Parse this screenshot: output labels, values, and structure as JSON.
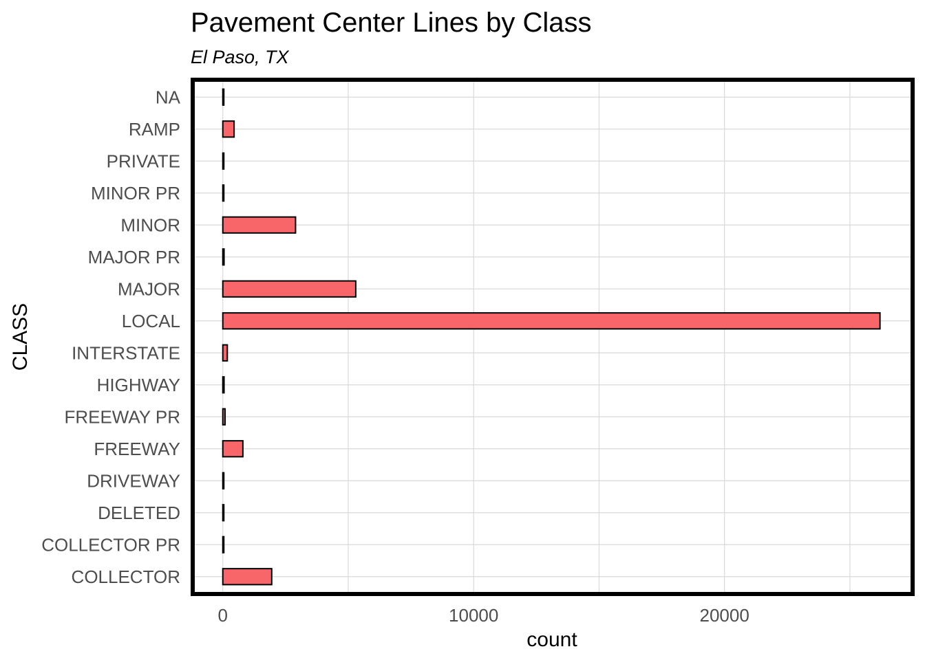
{
  "chart_data": {
    "type": "bar",
    "orientation": "horizontal",
    "title": "Pavement Center Lines by Class",
    "subtitle": "El Paso, TX",
    "xlabel": "count",
    "ylabel": "CLASS",
    "categories": [
      "COLLECTOR",
      "COLLECTOR PR",
      "DELETED",
      "DRIVEWAY",
      "FREEWAY",
      "FREEWAY PR",
      "HIGHWAY",
      "INTERSTATE",
      "LOCAL",
      "MAJOR",
      "MAJOR PR",
      "MINOR",
      "MINOR PR",
      "PRIVATE",
      "RAMP",
      "NA"
    ],
    "values": [
      1950,
      40,
      30,
      40,
      800,
      90,
      50,
      180,
      26200,
      5300,
      50,
      2900,
      40,
      30,
      450,
      40
    ],
    "xlim": [
      -1200,
      27500
    ],
    "xticks": [
      0,
      10000,
      20000
    ],
    "xtick_labels": [
      "0",
      "10000",
      "20000"
    ],
    "grid": true,
    "bar_color": "#F8666A",
    "bar_outline_color": "#000000",
    "panel_border_color": "#000000"
  }
}
